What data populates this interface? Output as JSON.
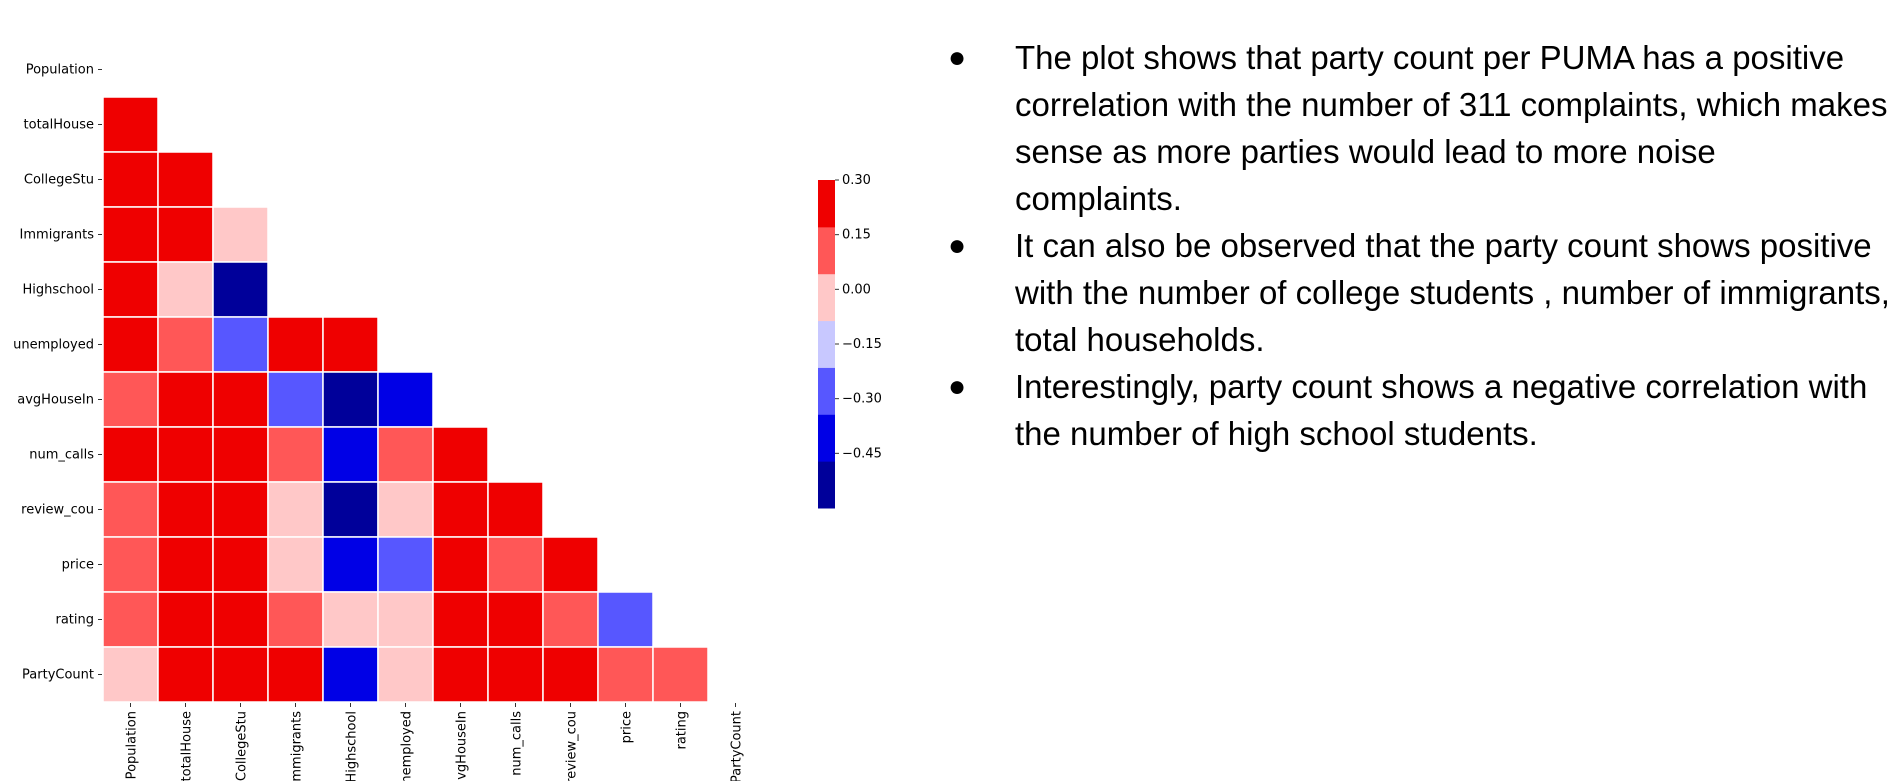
{
  "chart_data": {
    "type": "heatmap",
    "labels": [
      "Population",
      "totalHouse",
      "CollegeStu",
      "Immigrants",
      "Highschool",
      "unemployed",
      "avgHouseIn",
      "num_calls",
      "review_cou",
      "price",
      "rating",
      "PartyCount"
    ],
    "lower_triangle": [
      [],
      [
        0.35
      ],
      [
        0.2,
        0.35
      ],
      [
        0.35,
        0.2,
        -0.05
      ],
      [
        0.35,
        -0.05,
        -0.5
      ],
      [
        0.35,
        0.05,
        -0.25,
        0.35,
        0.35
      ],
      [
        0.05,
        0.35,
        0.35,
        -0.25,
        -0.5,
        -0.4
      ],
      [
        0.2,
        0.35,
        0.35,
        0.05,
        -0.4,
        0.05,
        0.35
      ],
      [
        0.05,
        0.35,
        0.35,
        -0.05,
        -0.5,
        -0.05,
        0.35,
        0.35
      ],
      [
        0.05,
        0.2,
        0.35,
        -0.05,
        -0.4,
        -0.25,
        0.35,
        0.05,
        0.2
      ],
      [
        0.05,
        0.2,
        0.2,
        0.05,
        -0.05,
        -0.05,
        0.2,
        0.2,
        0.05,
        -0.25
      ],
      [
        -0.05,
        0.2,
        0.2,
        0.2,
        -0.4,
        -0.05,
        0.2,
        0.35,
        0.35,
        0.05,
        0.05
      ]
    ],
    "colorbar": {
      "ticks": [
        "0.30",
        "0.15",
        "0.00",
        "−0.15",
        "−0.30",
        "−0.45"
      ],
      "range": [
        -0.6,
        0.3
      ],
      "colors": [
        "#00009a",
        "#0000e6",
        "#5757ff",
        "#c8c8ff",
        "#ffc8c8",
        "#ff5757",
        "#ef0000"
      ]
    }
  },
  "bullets": [
    "The plot shows that party count per PUMA has a positive correlation with the number of 311 complaints, which makes sense as more parties would lead to more noise complaints.",
    "It can also be observed that the party count shows positive with the number of college students , number of immigrants, total households.",
    "Interestingly, party count shows a negative correlation with the number of high school students."
  ],
  "bullet_glyph": "●"
}
